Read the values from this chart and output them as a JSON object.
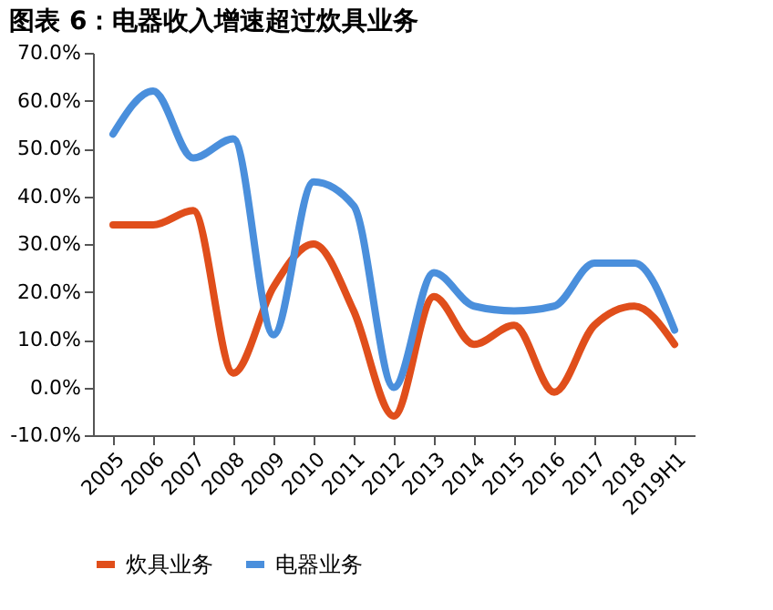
{
  "chart_data": {
    "type": "line",
    "title": "图表 6：电器收入增速超过炊具业务",
    "categories": [
      "2005",
      "2006",
      "2007",
      "2008",
      "2009",
      "2010",
      "2011",
      "2012",
      "2013",
      "2014",
      "2015",
      "2016",
      "2017",
      "2018",
      "2019H1"
    ],
    "series": [
      {
        "name": "炊具业务",
        "color": "#e04e1b",
        "values": [
          34,
          34,
          37,
          3,
          21,
          30,
          16,
          -6,
          19,
          9,
          13,
          -1,
          13,
          17,
          9
        ]
      },
      {
        "name": "电器业务",
        "color": "#4a8fdc",
        "values": [
          53,
          62,
          48,
          52,
          11,
          43,
          38,
          0,
          24,
          17,
          16,
          17,
          26,
          26,
          12
        ]
      }
    ],
    "ylim": [
      -10,
      70
    ],
    "yticks": [
      {
        "value": -10,
        "label": "-10.0%"
      },
      {
        "value": 0,
        "label": "0.0%"
      },
      {
        "value": 10,
        "label": "10.0%"
      },
      {
        "value": 20,
        "label": "20.0%"
      },
      {
        "value": 30,
        "label": "30.0%"
      },
      {
        "value": 40,
        "label": "40.0%"
      },
      {
        "value": 50,
        "label": "50.0%"
      },
      {
        "value": 60,
        "label": "60.0%"
      },
      {
        "value": 70,
        "label": "70.0%"
      }
    ],
    "grid": false,
    "legend": "bottom",
    "marker": "none",
    "line_style": "solid"
  }
}
